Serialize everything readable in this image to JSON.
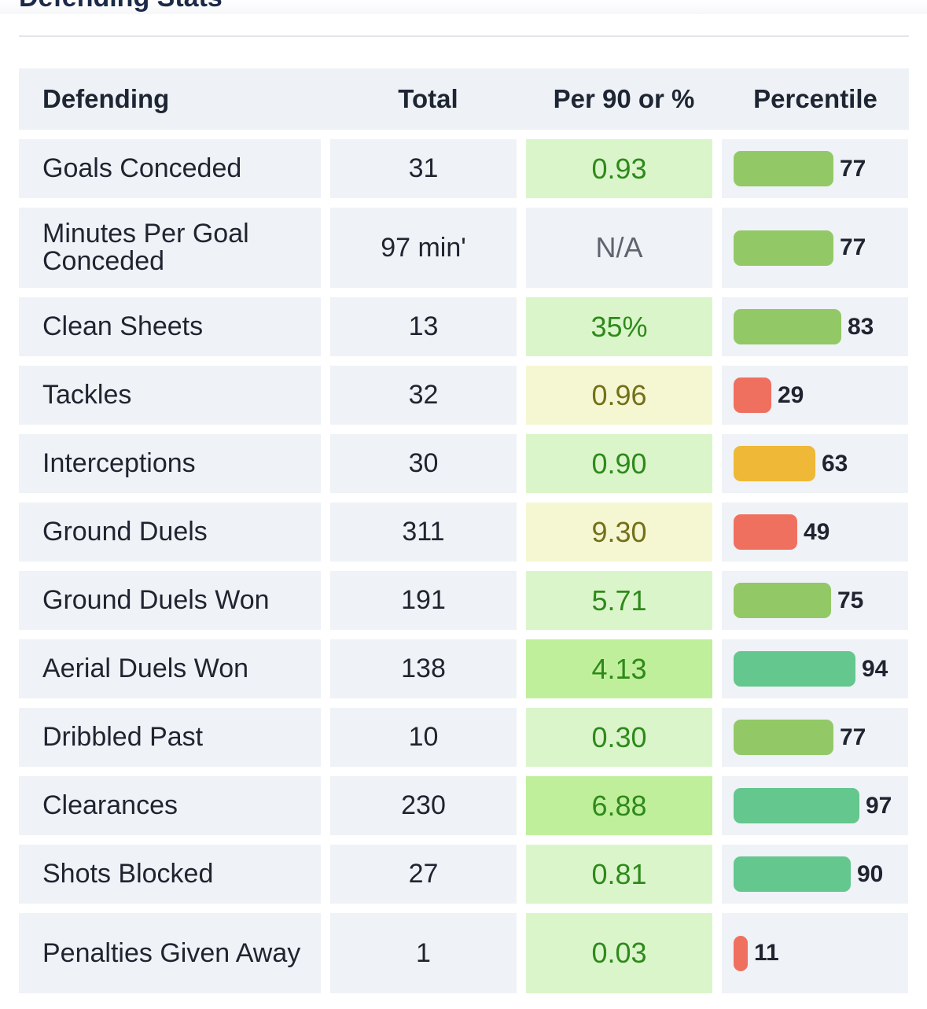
{
  "section": {
    "title": "Defending Stats"
  },
  "table": {
    "headers": [
      "Defending",
      "Total",
      "Per 90 or %",
      "Percentile"
    ],
    "rows": [
      {
        "name": "Goals Conceded",
        "total": "31",
        "per": "0.93",
        "percentile": 77,
        "percentile_label": "77",
        "tone": "green",
        "bar_color": "#92c966"
      },
      {
        "name": "Minutes Per Goal Conceded",
        "total": "97 min'",
        "per": "N/A",
        "percentile": 77,
        "percentile_label": "77",
        "tone": "neutral",
        "bar_color": "#92c966"
      },
      {
        "name": "Clean Sheets",
        "total": "13",
        "per": "35%",
        "percentile": 83,
        "percentile_label": "83",
        "tone": "green",
        "bar_color": "#92c966"
      },
      {
        "name": "Tackles",
        "total": "32",
        "per": "0.96",
        "percentile": 29,
        "percentile_label": "29",
        "tone": "yellow",
        "bar_color": "#f07060"
      },
      {
        "name": "Interceptions",
        "total": "30",
        "per": "0.90",
        "percentile": 63,
        "percentile_label": "63",
        "tone": "green",
        "bar_color": "#efb837"
      },
      {
        "name": "Ground Duels",
        "total": "311",
        "per": "9.30",
        "percentile": 49,
        "percentile_label": "49",
        "tone": "yellow",
        "bar_color": "#f07060"
      },
      {
        "name": "Ground Duels Won",
        "total": "191",
        "per": "5.71",
        "percentile": 75,
        "percentile_label": "75",
        "tone": "green",
        "bar_color": "#92c966"
      },
      {
        "name": "Aerial Duels Won",
        "total": "138",
        "per": "4.13",
        "percentile": 94,
        "percentile_label": "94",
        "tone": "strong",
        "bar_color": "#63c78e"
      },
      {
        "name": "Dribbled Past",
        "total": "10",
        "per": "0.30",
        "percentile": 77,
        "percentile_label": "77",
        "tone": "green",
        "bar_color": "#92c966"
      },
      {
        "name": "Clearances",
        "total": "230",
        "per": "6.88",
        "percentile": 97,
        "percentile_label": "97",
        "tone": "strong",
        "bar_color": "#63c78e"
      },
      {
        "name": "Shots Blocked",
        "total": "27",
        "per": "0.81",
        "percentile": 90,
        "percentile_label": "90",
        "tone": "green",
        "bar_color": "#63c78e"
      },
      {
        "name": "Penalties Given Away",
        "total": "1",
        "per": "0.03",
        "percentile": 11,
        "percentile_label": "11",
        "tone": "green",
        "bar_color": "#f07060"
      }
    ]
  }
}
